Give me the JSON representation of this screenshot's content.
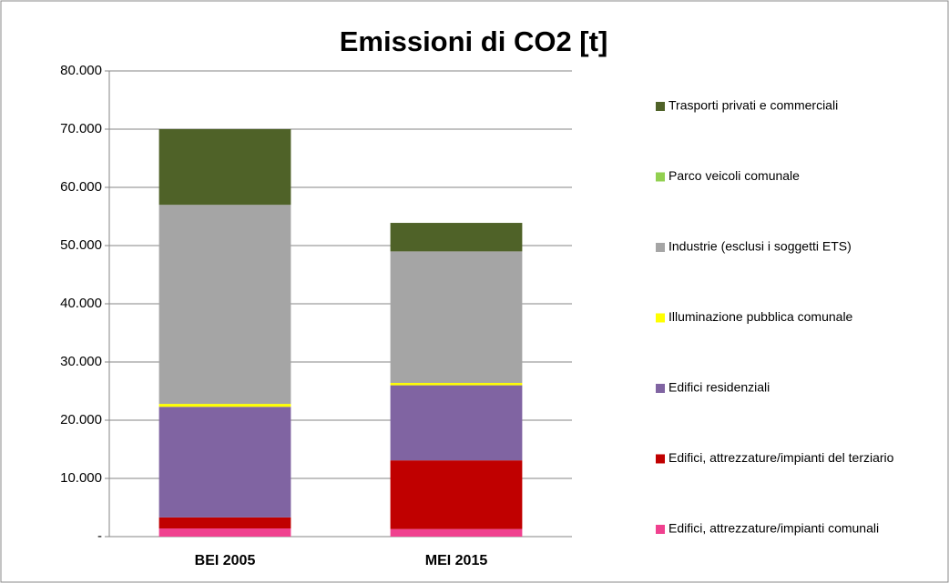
{
  "chart_data": {
    "type": "stacked_bar",
    "title": "Emissioni di CO2 [t]",
    "categories": [
      "BEI 2005",
      "MEI 2015"
    ],
    "series": [
      {
        "name": "Edifici, attrezzature/impianti comunali",
        "color": "#f0418f",
        "values": [
          1400,
          1300
        ]
      },
      {
        "name": "Edifici, attrezzature/impianti del terziario",
        "color": "#c00000",
        "values": [
          1900,
          11800
        ]
      },
      {
        "name": "Edifici residenziali",
        "color": "#8064a2",
        "values": [
          19000,
          12900
        ]
      },
      {
        "name": "Illuminazione pubblica comunale",
        "color": "#ffff00",
        "values": [
          500,
          400
        ]
      },
      {
        "name": "Industrie (esclusi i soggetti ETS)",
        "color": "#a5a5a5",
        "values": [
          34200,
          22600
        ]
      },
      {
        "name": "Parco veicoli comunale",
        "color": "#92d050",
        "values": [
          0,
          0
        ]
      },
      {
        "name": "Trasporti privati e commerciali",
        "color": "#4f6228",
        "values": [
          13000,
          4900
        ]
      }
    ],
    "ylim": [
      0,
      80000
    ],
    "yticks": [
      {
        "value": 0,
        "label": "-"
      },
      {
        "value": 10000,
        "label": "10.000"
      },
      {
        "value": 20000,
        "label": "20.000"
      },
      {
        "value": 30000,
        "label": "30.000"
      },
      {
        "value": 40000,
        "label": "40.000"
      },
      {
        "value": 50000,
        "label": "50.000"
      },
      {
        "value": 60000,
        "label": "60.000"
      },
      {
        "value": 70000,
        "label": "70.000"
      },
      {
        "value": 80000,
        "label": "80.000"
      }
    ],
    "grid": true,
    "legend": "right"
  }
}
